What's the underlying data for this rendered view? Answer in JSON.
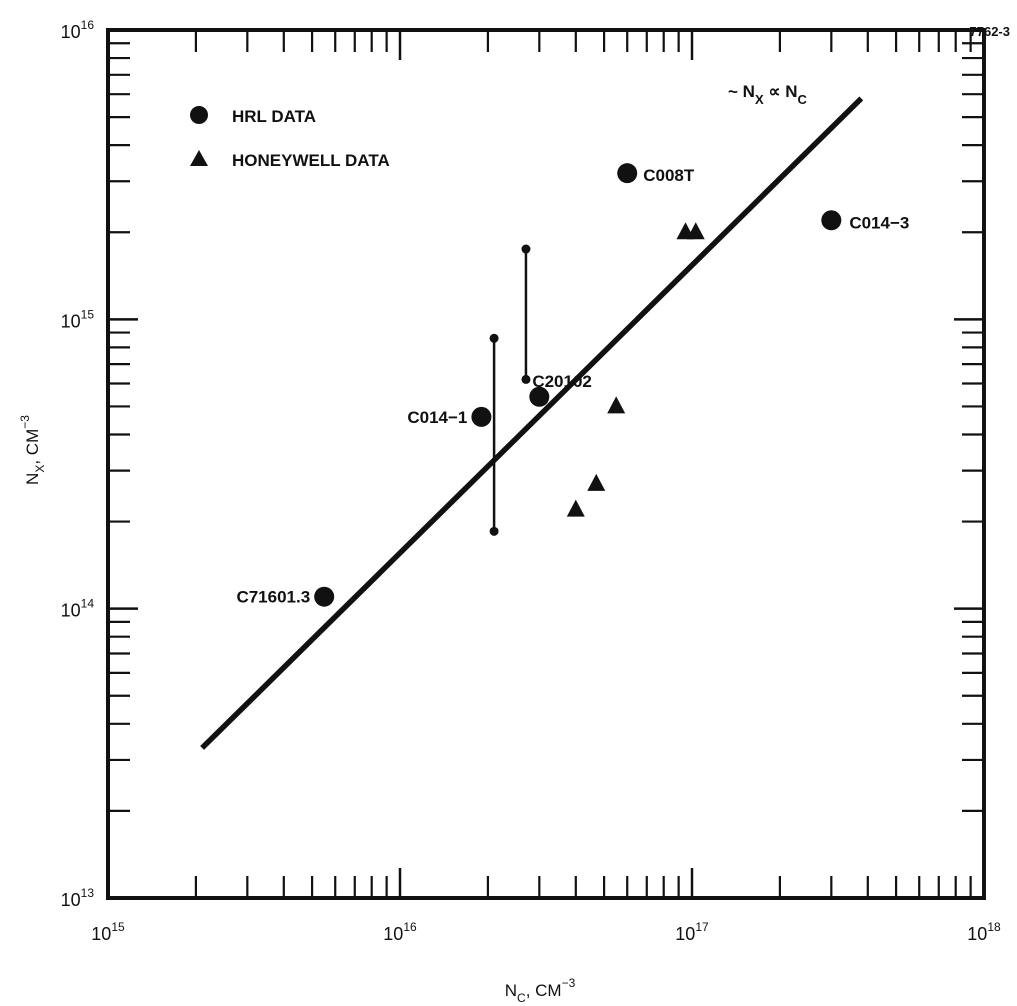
{
  "figure_id": "7762-3",
  "chart_data": {
    "type": "scatter",
    "x_scale": "log",
    "y_scale": "log",
    "xlim": [
      1000000000000000.0,
      1e+18
    ],
    "ylim": [
      10000000000000.0,
      1e+16
    ],
    "xlabel": {
      "base": "N",
      "sub": "C",
      "after": ", CM",
      "sup": "−3"
    },
    "ylabel": {
      "base": "N",
      "sub": "X",
      "after": ", CM",
      "sup": "−3"
    },
    "x_ticks": [
      {
        "value": 1000000000000000.0,
        "base": "10",
        "exp": "15"
      },
      {
        "value": 1e+16,
        "base": "10",
        "exp": "16"
      },
      {
        "value": 1e+17,
        "base": "10",
        "exp": "17"
      },
      {
        "value": 1e+18,
        "base": "10",
        "exp": "18"
      }
    ],
    "y_ticks": [
      {
        "value": 10000000000000.0,
        "base": "10",
        "exp": "13"
      },
      {
        "value": 100000000000000.0,
        "base": "10",
        "exp": "14"
      },
      {
        "value": 1000000000000000.0,
        "base": "10",
        "exp": "15"
      },
      {
        "value": 1e+16,
        "base": "10",
        "exp": "16"
      }
    ],
    "grid": false,
    "legend": [
      {
        "label": "HRL DATA",
        "marker": "circle"
      },
      {
        "label": "HONEYWELL DATA",
        "marker": "triangle"
      }
    ],
    "series": [
      {
        "name": "HRL DATA",
        "marker": "circle",
        "points": [
          {
            "x": 5500000000000000.0,
            "y": 110000000000000.0,
            "label": "C71601.3"
          },
          {
            "x": 1.9e+16,
            "y": 460000000000000.0,
            "label": "C014−1"
          },
          {
            "x": 3e+16,
            "y": 540000000000000.0,
            "label": "C20102"
          },
          {
            "x": 6e+16,
            "y": 3200000000000000.0,
            "label": "C008T"
          },
          {
            "x": 3e+17,
            "y": 2200000000000000.0,
            "label": "C014−3"
          }
        ]
      },
      {
        "name": "HONEYWELL DATA",
        "marker": "triangle",
        "points": [
          {
            "x": 4e+16,
            "y": 220000000000000.0
          },
          {
            "x": 4.7e+16,
            "y": 270000000000000.0
          },
          {
            "x": 5.5e+16,
            "y": 500000000000000.0
          },
          {
            "x": 9.5e+16,
            "y": 2000000000000000.0
          },
          {
            "x": 1.03e+17,
            "y": 2000000000000000.0
          }
        ]
      }
    ],
    "error_bars": [
      {
        "x": 2.1e+16,
        "y_low": 185000000000000.0,
        "y_high": 860000000000000.0
      },
      {
        "x": 2.7e+16,
        "y_low": 620000000000000.0,
        "y_high": 1750000000000000.0
      }
    ],
    "fit_line": {
      "x": [
        2100000000000000.0,
        3.8e+17
      ],
      "y": [
        33000000000000.0,
        5800000000000000.0
      ],
      "annotation": {
        "prefix": "~ N",
        "sub1": "X",
        "mid": " ∝ N",
        "sub2": "C"
      }
    }
  }
}
